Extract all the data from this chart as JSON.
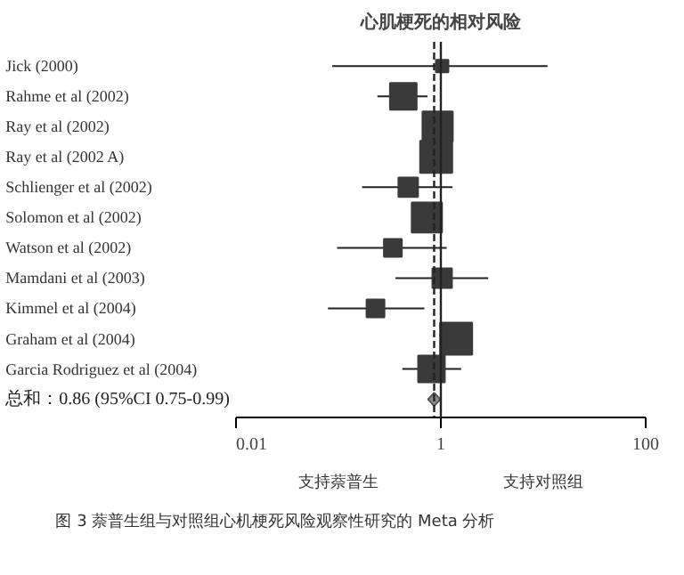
{
  "chart_data": {
    "type": "bubble",
    "orientation": "horizontal",
    "title": "心肌梗死的相对风险",
    "categories": [
      "Jick (2000)",
      "Rahme  et  al (2002)",
      "Ray  et  al (2002)",
      "Ray  et  al (2002  A)",
      "Schlienger  et  al (2002)",
      "Solomon  et  al (2002)",
      "Watson  et  al (2002)",
      "Mamdani  et  al (2003)",
      "Kimmel  et  al (2004)",
      "Graham  et  al (2004)",
      "Garcia  Rodriguez  et  al (2004)",
      null
    ],
    "series": [
      {
        "color": "#3a3a3a",
        "marker": "square",
        "values": [
          1.03,
          0.43,
          0.93,
          0.9,
          0.48,
          0.73,
          0.34,
          1.03,
          0.23,
          1.41,
          0.81,
          null
        ],
        "sizes": [
          0.15,
          0.69,
          0.89,
          1,
          0.37,
          0.89,
          0.31,
          0.37,
          0.31,
          1,
          0.69,
          null
        ],
        "errors": [
          [
            0.087,
            11
          ],
          [
            0.24,
            0.74
          ],
          [
            0.86,
            1.0
          ],
          [
            0.85,
            0.96
          ],
          [
            0.17,
            1.3
          ],
          [
            0.55,
            1.0
          ],
          [
            0.097,
            1.14
          ],
          [
            0.36,
            2.9
          ],
          [
            0.079,
            0.69
          ],
          [
            1.04,
            1.95
          ],
          [
            0.42,
            1.58
          ],
          null
        ]
      },
      {
        "name": "总和：0.86  (95%CI 0.75-0.99)",
        "color": "#8c8c8c",
        "marker": "diamond",
        "values": [
          null,
          null,
          null,
          null,
          null,
          null,
          null,
          null,
          null,
          null,
          null,
          0.86
        ],
        "errors": [
          null,
          null,
          null,
          null,
          null,
          null,
          null,
          null,
          null,
          null,
          null,
          [
            0.75,
            0.99
          ]
        ]
      }
    ],
    "log": "x",
    "xlim": [
      0.01,
      100
    ],
    "xticks": [
      0.01,
      1,
      100
    ],
    "ref_lines": [
      {
        "axis": "x",
        "value": 1,
        "line_style": "solid",
        "color": "#222222"
      },
      {
        "axis": "x",
        "value": 0.86,
        "line_style": "dashed",
        "color": "#222222"
      }
    ],
    "annotations": [
      "支持萘普生",
      "支持对照组",
      "图 3   萘普生组与对照组心机梗死风险观察性研究的 Meta 分析"
    ],
    "grid": false
  }
}
